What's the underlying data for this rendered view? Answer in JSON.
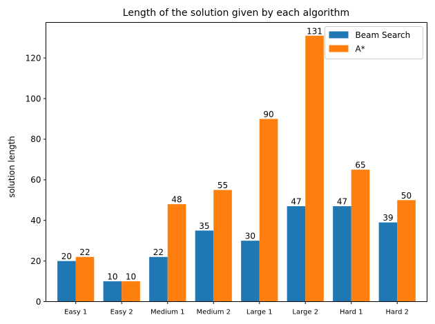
{
  "chart_data": {
    "type": "bar",
    "title": "Length of the solution given by each algorithm",
    "xlabel": "",
    "ylabel": "solution length",
    "categories": [
      "Easy 1",
      "Easy 2",
      "Medium 1",
      "Medium 2",
      "Large 1",
      "Large 2",
      "Hard 1",
      "Hard 2"
    ],
    "series": [
      {
        "name": "Beam Search",
        "color": "#1f77b4",
        "values": [
          20,
          10,
          22,
          35,
          30,
          47,
          47,
          39
        ]
      },
      {
        "name": "A*",
        "color": "#ff7f0e",
        "values": [
          22,
          10,
          48,
          55,
          90,
          131,
          65,
          50
        ]
      }
    ],
    "ylim": [
      0,
      137.55
    ],
    "yticks": [
      0,
      20,
      40,
      60,
      80,
      100,
      120
    ],
    "grid": false,
    "legend_position": "top-right",
    "data_labels": true
  }
}
